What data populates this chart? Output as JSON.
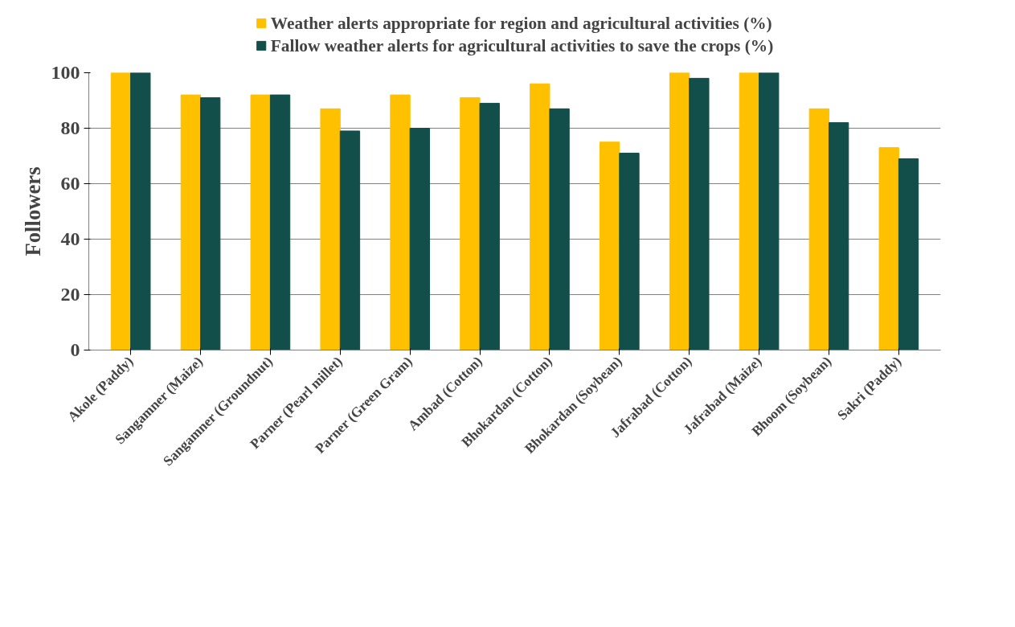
{
  "chart_data": {
    "type": "bar",
    "ylabel": "Followers",
    "categories": [
      "Akole (Paddy)",
      "Sangamner (Maize)",
      "Sangamner (Groundnut)",
      "Parner (Pearl millet)",
      "Parner (Green Gram)",
      "Ambad (Cotton)",
      "Bhokardan (Cotton)",
      "Bhokardan (Soybean)",
      "Jafrabad (Cotton)",
      "Jafrabad (Maize)",
      "Bhoom (Soybean)",
      "Sakri (Paddy)"
    ],
    "series": [
      {
        "name": "Weather alerts appropriate for region and agricultural activities (%)",
        "color": "#ffc000",
        "values": [
          100,
          92,
          92,
          87,
          92,
          91,
          96,
          75,
          100,
          100,
          87,
          73
        ]
      },
      {
        "name": "Fallow weather alerts for agricultural activities to save the crops (%)",
        "color": "#134f4a",
        "values": [
          100,
          91,
          92,
          79,
          80,
          89,
          87,
          71,
          98,
          100,
          82,
          69
        ]
      }
    ],
    "ylim": [
      0,
      100
    ],
    "yticks": [
      0,
      20,
      40,
      60,
      80,
      100
    ],
    "grid": "y",
    "legend": "top"
  }
}
